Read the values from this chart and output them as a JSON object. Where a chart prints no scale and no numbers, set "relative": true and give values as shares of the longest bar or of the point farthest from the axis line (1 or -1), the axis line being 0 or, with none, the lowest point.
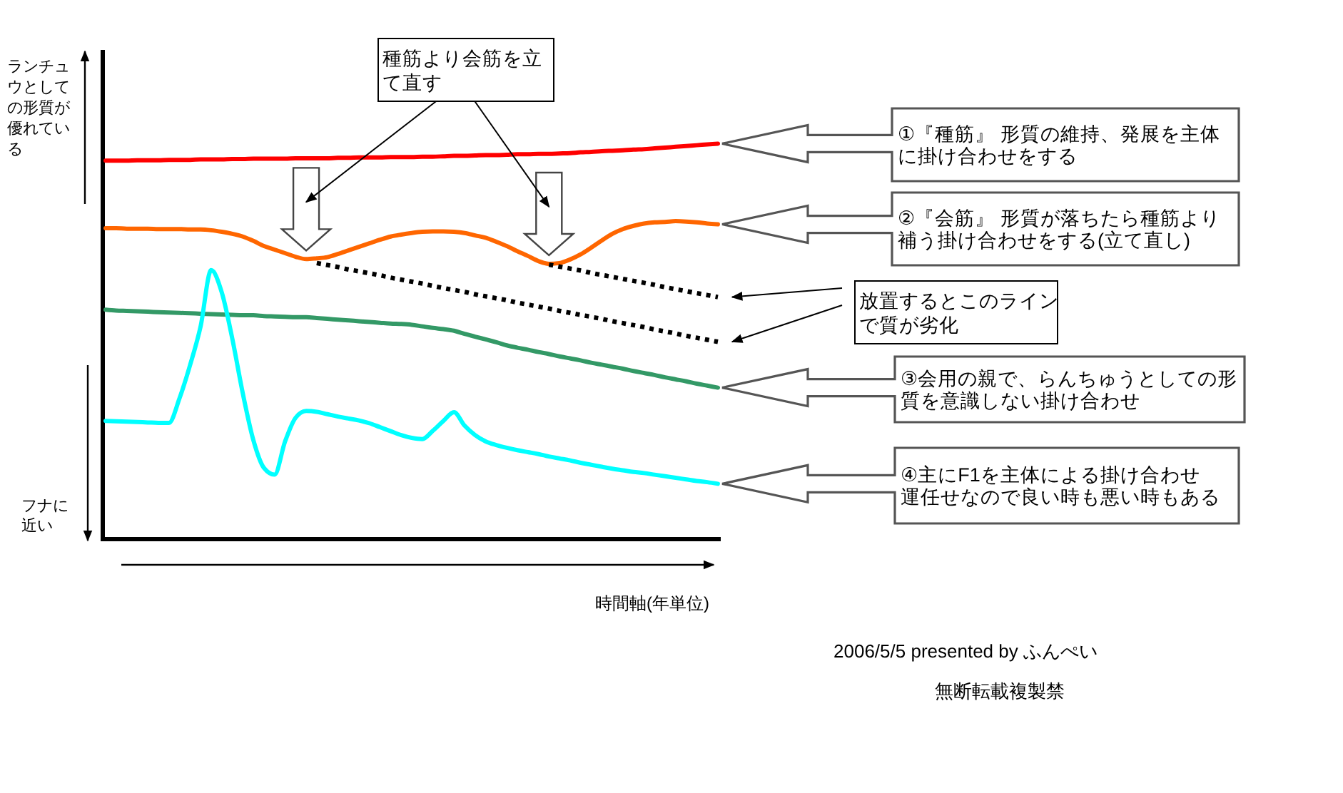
{
  "chart_data": {
    "type": "line",
    "relative": true,
    "xlabel": "時間軸(年単位)",
    "categories": [
      null,
      null,
      null,
      null,
      null,
      null,
      null,
      null,
      null,
      null,
      null,
      null,
      null,
      null,
      null,
      null,
      null,
      null,
      null,
      null,
      null,
      null,
      null,
      null,
      null,
      null,
      null,
      null,
      null,
      null,
      null,
      null,
      null,
      null,
      null,
      null,
      null,
      null,
      null,
      null,
      null,
      null,
      null,
      null,
      null,
      null,
      null,
      null,
      null,
      null,
      null,
      null,
      null,
      null,
      null,
      null,
      null,
      null,
      null
    ],
    "series": [
      {
        "name": "①『種筋』 形質の維持、発展を主体に掛け合わせをする",
        "color": "#ff0000",
        "values": [
          0.957,
          0.957,
          0.957,
          0.958,
          0.958,
          0.958,
          0.959,
          0.959,
          0.959,
          0.96,
          0.96,
          0.96,
          0.961,
          0.961,
          0.962,
          0.962,
          0.962,
          0.962,
          0.963,
          0.963,
          0.963,
          0.963,
          0.964,
          0.964,
          0.965,
          0.965,
          0.965,
          0.966,
          0.966,
          0.966,
          0.967,
          0.967,
          0.968,
          0.969,
          0.969,
          0.97,
          0.971,
          0.971,
          0.972,
          0.973,
          0.973,
          0.974,
          0.974,
          0.975,
          0.976,
          0.978,
          0.979,
          0.981,
          0.982,
          0.983,
          0.985,
          0.986,
          0.988,
          0.99,
          0.992,
          0.994,
          0.996,
          0.998,
          1.0
        ]
      },
      {
        "name": "②『会筋』 形質が落ちたら種筋より補う掛け合わせをする(立て直し)",
        "color": "#ff6600",
        "values": [
          0.786,
          0.786,
          0.785,
          0.785,
          0.785,
          0.784,
          0.784,
          0.784,
          0.783,
          0.783,
          0.781,
          0.777,
          0.772,
          0.765,
          0.754,
          0.741,
          0.732,
          0.723,
          0.714,
          0.708,
          0.71,
          0.713,
          0.721,
          0.73,
          0.739,
          0.748,
          0.757,
          0.765,
          0.77,
          0.774,
          0.777,
          0.778,
          0.778,
          0.777,
          0.774,
          0.768,
          0.762,
          0.752,
          0.741,
          0.728,
          0.716,
          0.703,
          0.696,
          0.698,
          0.707,
          0.72,
          0.737,
          0.755,
          0.772,
          0.784,
          0.792,
          0.798,
          0.801,
          0.802,
          0.804,
          0.803,
          0.801,
          0.798,
          0.796
        ]
      },
      {
        "name": "③会用の親で、らんちゅうとしての形質を意識しない掛け合わせ",
        "color": "#339966",
        "values": [
          0.58,
          0.578,
          0.577,
          0.576,
          0.575,
          0.574,
          0.573,
          0.572,
          0.571,
          0.57,
          0.569,
          0.568,
          0.567,
          0.566,
          0.566,
          0.564,
          0.563,
          0.562,
          0.561,
          0.561,
          0.559,
          0.557,
          0.555,
          0.553,
          0.551,
          0.549,
          0.547,
          0.545,
          0.544,
          0.542,
          0.538,
          0.534,
          0.531,
          0.527,
          0.519,
          0.512,
          0.505,
          0.498,
          0.49,
          0.484,
          0.479,
          0.473,
          0.468,
          0.462,
          0.457,
          0.452,
          0.446,
          0.441,
          0.436,
          0.431,
          0.425,
          0.42,
          0.415,
          0.409,
          0.404,
          0.399,
          0.393,
          0.388,
          0.383
        ]
      },
      {
        "name": "④主にF1を主体による掛け合わせ運任せなので良い時も悪い時もある",
        "color": "#00ffff",
        "values": [
          0.299,
          0.298,
          0.297,
          0.296,
          0.295,
          0.294,
          0.294,
          0.356,
          0.44,
          0.538,
          0.68,
          0.624,
          0.507,
          0.368,
          0.25,
          0.18,
          0.163,
          0.247,
          0.307,
          0.324,
          0.322,
          0.316,
          0.31,
          0.305,
          0.3,
          0.293,
          0.283,
          0.273,
          0.263,
          0.256,
          0.253,
          0.274,
          0.299,
          0.321,
          0.287,
          0.263,
          0.247,
          0.238,
          0.231,
          0.225,
          0.22,
          0.215,
          0.209,
          0.204,
          0.199,
          0.193,
          0.188,
          0.183,
          0.178,
          0.174,
          0.17,
          0.167,
          0.163,
          0.159,
          0.155,
          0.151,
          0.147,
          0.144,
          0.14
        ]
      },
      {
        "color": "#000000",
        "line_style": "dotted",
        "values": [
          null,
          null,
          null,
          null,
          null,
          null,
          null,
          null,
          null,
          null,
          null,
          null,
          null,
          null,
          null,
          null,
          null,
          null,
          null,
          null,
          0.698,
          0.693,
          0.688,
          0.682,
          0.677,
          0.672,
          0.667,
          0.661,
          0.656,
          0.651,
          0.646,
          0.64,
          0.635,
          0.63,
          0.625,
          0.619,
          0.614,
          0.609,
          0.604,
          0.598,
          0.593,
          0.588,
          0.583,
          0.577,
          0.572,
          0.567,
          0.562,
          0.557,
          0.551,
          0.546,
          0.541,
          0.536,
          0.53,
          0.525,
          0.52,
          0.514,
          0.509,
          0.504,
          0.499
        ]
      },
      {
        "color": "#000000",
        "line_style": "dotted",
        "values": [
          null,
          null,
          null,
          null,
          null,
          null,
          null,
          null,
          null,
          null,
          null,
          null,
          null,
          null,
          null,
          null,
          null,
          null,
          null,
          null,
          null,
          null,
          null,
          null,
          null,
          null,
          null,
          null,
          null,
          null,
          null,
          null,
          null,
          null,
          null,
          null,
          null,
          null,
          null,
          null,
          null,
          null,
          0.694,
          0.689,
          0.684,
          0.679,
          0.673,
          0.668,
          0.663,
          0.658,
          0.653,
          0.648,
          0.643,
          0.637,
          0.632,
          0.627,
          0.622,
          0.617,
          0.612
        ]
      }
    ],
    "annotations": [
      "種筋より会筋を立て直す",
      "放置するとこのラインで質が劣化",
      "ランチュウとしての形質が優れている",
      "フナに近い",
      "2006/5/5 presented by ふんぺい",
      "無断転載複製禁"
    ]
  }
}
